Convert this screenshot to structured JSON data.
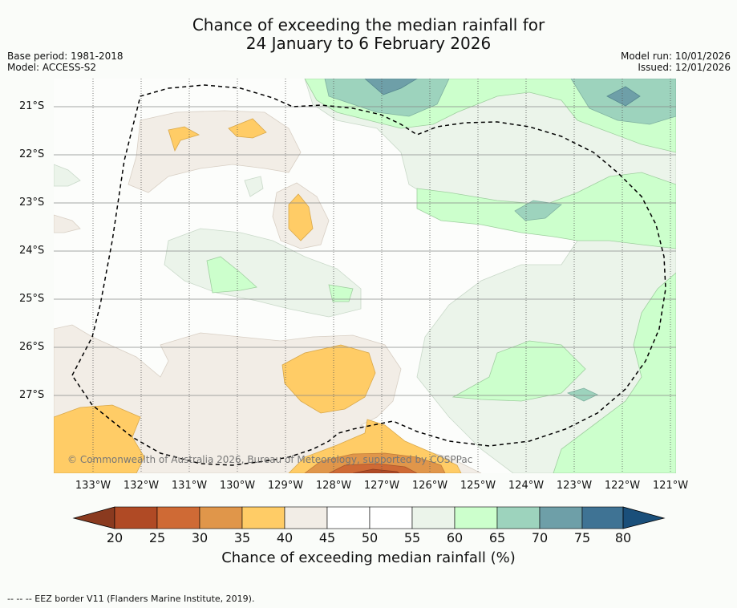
{
  "title": {
    "line1": "Chance of exceeding the median rainfall for",
    "line2": "24 January to 6 February 2026"
  },
  "meta": {
    "base_period": "Base period: 1981-2018",
    "model": "Model: ACCESS-S2",
    "model_run": "Model run: 10/01/2026",
    "issued": "Issued: 12/01/2026"
  },
  "map": {
    "lon_labels": [
      "133°W",
      "132°W",
      "131°W",
      "130°W",
      "129°W",
      "128°W",
      "127°W",
      "126°W",
      "125°W",
      "124°W",
      "123°W",
      "122°W",
      "121°W"
    ],
    "lat_labels": [
      "21°S",
      "22°S",
      "23°S",
      "24°S",
      "25°S",
      "26°S",
      "27°S"
    ],
    "copyright": "© Commonwealth of Australia 2026, Bureau of Meteorology, supported by COSPPac"
  },
  "colorbar": {
    "ticks": [
      "20",
      "25",
      "30",
      "35",
      "40",
      "45",
      "50",
      "55",
      "60",
      "65",
      "70",
      "75",
      "80"
    ],
    "colors": {
      "under": "#8a3a1f",
      "c20_25": "#b04a25",
      "c25_30": "#cf6a35",
      "c30_35": "#e0964a",
      "c35_40": "#ffcc66",
      "c40_45": "#f2ede6",
      "c45_50": "#ffffff",
      "c50_55": "#ffffff",
      "c55_60": "#ebf4ea",
      "c60_65": "#ccffcc",
      "c65_70": "#9dd3bd",
      "c70_75": "#6e9fa8",
      "c75_80": "#3f7394",
      "over": "#1a4f7a"
    },
    "title": "Chance of exceeding median rainfall (%)"
  },
  "legend": {
    "text": "-- -- -- EEZ border V11 (Flanders Marine Institute, 2019)."
  }
}
